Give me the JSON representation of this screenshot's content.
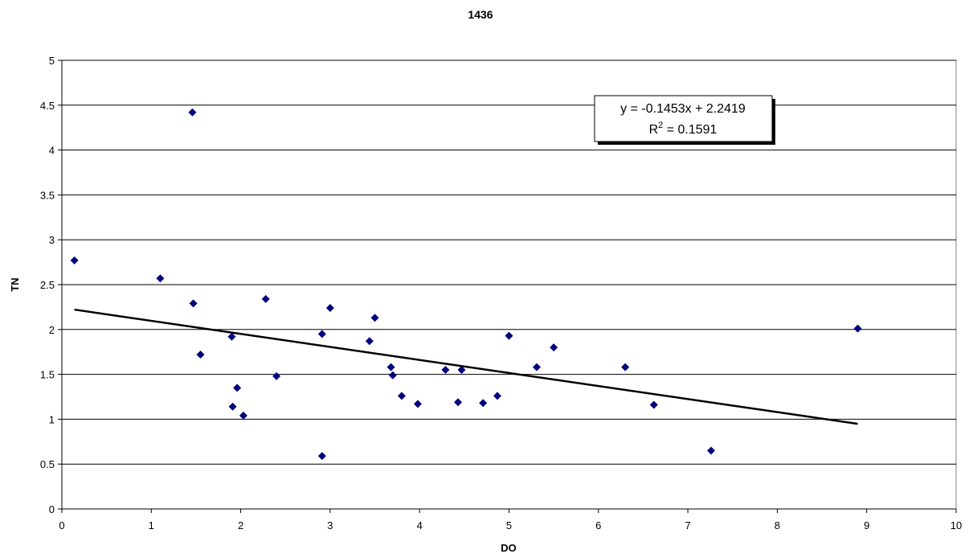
{
  "chart_data": {
    "type": "scatter",
    "title": "1436",
    "xlabel": "DO",
    "ylabel": "TN",
    "xlim": [
      0,
      10
    ],
    "ylim": [
      0,
      5
    ],
    "x_ticks": [
      "0",
      "1",
      "2",
      "3",
      "4",
      "5",
      "6",
      "7",
      "8",
      "9",
      "10"
    ],
    "y_ticks": [
      "0",
      "0.5",
      "1",
      "1.5",
      "2",
      "2.5",
      "3",
      "3.5",
      "4",
      "4.5",
      "5"
    ],
    "grid": "horizontal",
    "marker_color": "#00007f",
    "trendline_color": "#000000",
    "series": [
      {
        "points": [
          {
            "x": 0.14,
            "y": 2.77
          },
          {
            "x": 1.1,
            "y": 2.57
          },
          {
            "x": 1.46,
            "y": 4.42
          },
          {
            "x": 1.47,
            "y": 2.29
          },
          {
            "x": 1.55,
            "y": 1.72
          },
          {
            "x": 1.9,
            "y": 1.92
          },
          {
            "x": 1.91,
            "y": 1.14
          },
          {
            "x": 1.96,
            "y": 1.35
          },
          {
            "x": 2.03,
            "y": 1.04
          },
          {
            "x": 2.28,
            "y": 2.34
          },
          {
            "x": 2.4,
            "y": 1.48
          },
          {
            "x": 2.91,
            "y": 1.95
          },
          {
            "x": 2.91,
            "y": 0.59
          },
          {
            "x": 3.0,
            "y": 2.24
          },
          {
            "x": 3.44,
            "y": 1.87
          },
          {
            "x": 3.5,
            "y": 2.13
          },
          {
            "x": 3.68,
            "y": 1.58
          },
          {
            "x": 3.7,
            "y": 1.49
          },
          {
            "x": 3.8,
            "y": 1.26
          },
          {
            "x": 3.98,
            "y": 1.17
          },
          {
            "x": 4.29,
            "y": 1.55
          },
          {
            "x": 4.43,
            "y": 1.19
          },
          {
            "x": 4.47,
            "y": 1.55
          },
          {
            "x": 4.71,
            "y": 1.18
          },
          {
            "x": 4.87,
            "y": 1.26
          },
          {
            "x": 5.0,
            "y": 1.93
          },
          {
            "x": 5.31,
            "y": 1.58
          },
          {
            "x": 5.5,
            "y": 1.8
          },
          {
            "x": 6.3,
            "y": 1.58
          },
          {
            "x": 6.62,
            "y": 1.16
          },
          {
            "x": 7.26,
            "y": 0.65
          },
          {
            "x": 8.9,
            "y": 2.01
          }
        ]
      }
    ],
    "trendline": {
      "slope": -0.1453,
      "intercept": 2.2419,
      "x_start": 0.14,
      "x_end": 8.9,
      "equation_line1": "y = -0.1453x + 2.2419",
      "equation_r2_prefix": "R",
      "equation_r2_sup": "2",
      "equation_r2_suffix": " = 0.1591"
    }
  }
}
